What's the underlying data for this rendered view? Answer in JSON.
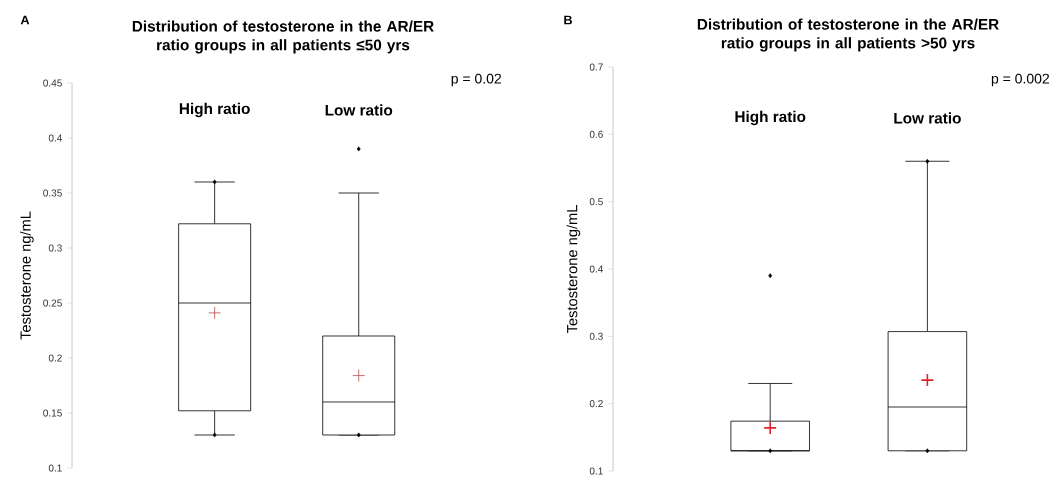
{
  "chart_data": [
    {
      "type": "box",
      "title": "Distribution of testosterone in the AR/ER ratio groups in all patients ≤50 yrs",
      "ylabel": "Testosterone ng/mL",
      "categories": [
        "High ratio",
        "Low ratio"
      ],
      "boxes": [
        {
          "low": 0.13,
          "q1": 0.152,
          "median": 0.25,
          "q3": 0.322,
          "high": 0.36,
          "mean": 0.241,
          "outliers": [
            0.36,
            0.13
          ]
        },
        {
          "low": 0.13,
          "q1": 0.13,
          "median": 0.16,
          "q3": 0.22,
          "high": 0.35,
          "mean": 0.184,
          "outliers": [
            0.39,
            0.13
          ]
        }
      ],
      "ylim": [
        0.1,
        0.45
      ],
      "yticks": [
        0.1,
        0.15,
        0.2,
        0.25,
        0.3,
        0.35,
        0.4,
        0.45
      ],
      "annotations": [
        "p = 0.02",
        "A"
      ]
    },
    {
      "type": "box",
      "title": "Distribution of testosterone in the AR/ER ratio groups in all patients >50 yrs",
      "ylabel": "Testosterone ng/mL",
      "categories": [
        "High ratio",
        "Low ratio"
      ],
      "boxes": [
        {
          "low": 0.13,
          "q1": 0.13,
          "median": 0.13,
          "q3": 0.174,
          "high": 0.23,
          "mean": 0.164,
          "outliers": [
            0.39,
            0.13
          ]
        },
        {
          "low": 0.13,
          "q1": 0.13,
          "median": 0.195,
          "q3": 0.307,
          "high": 0.56,
          "mean": 0.235,
          "outliers": [
            0.56,
            0.13
          ]
        }
      ],
      "ylim": [
        0.1,
        0.7
      ],
      "yticks": [
        0.1,
        0.2,
        0.3,
        0.4,
        0.5,
        0.6,
        0.7
      ],
      "annotations": [
        "p = 0.002",
        "B"
      ]
    }
  ]
}
